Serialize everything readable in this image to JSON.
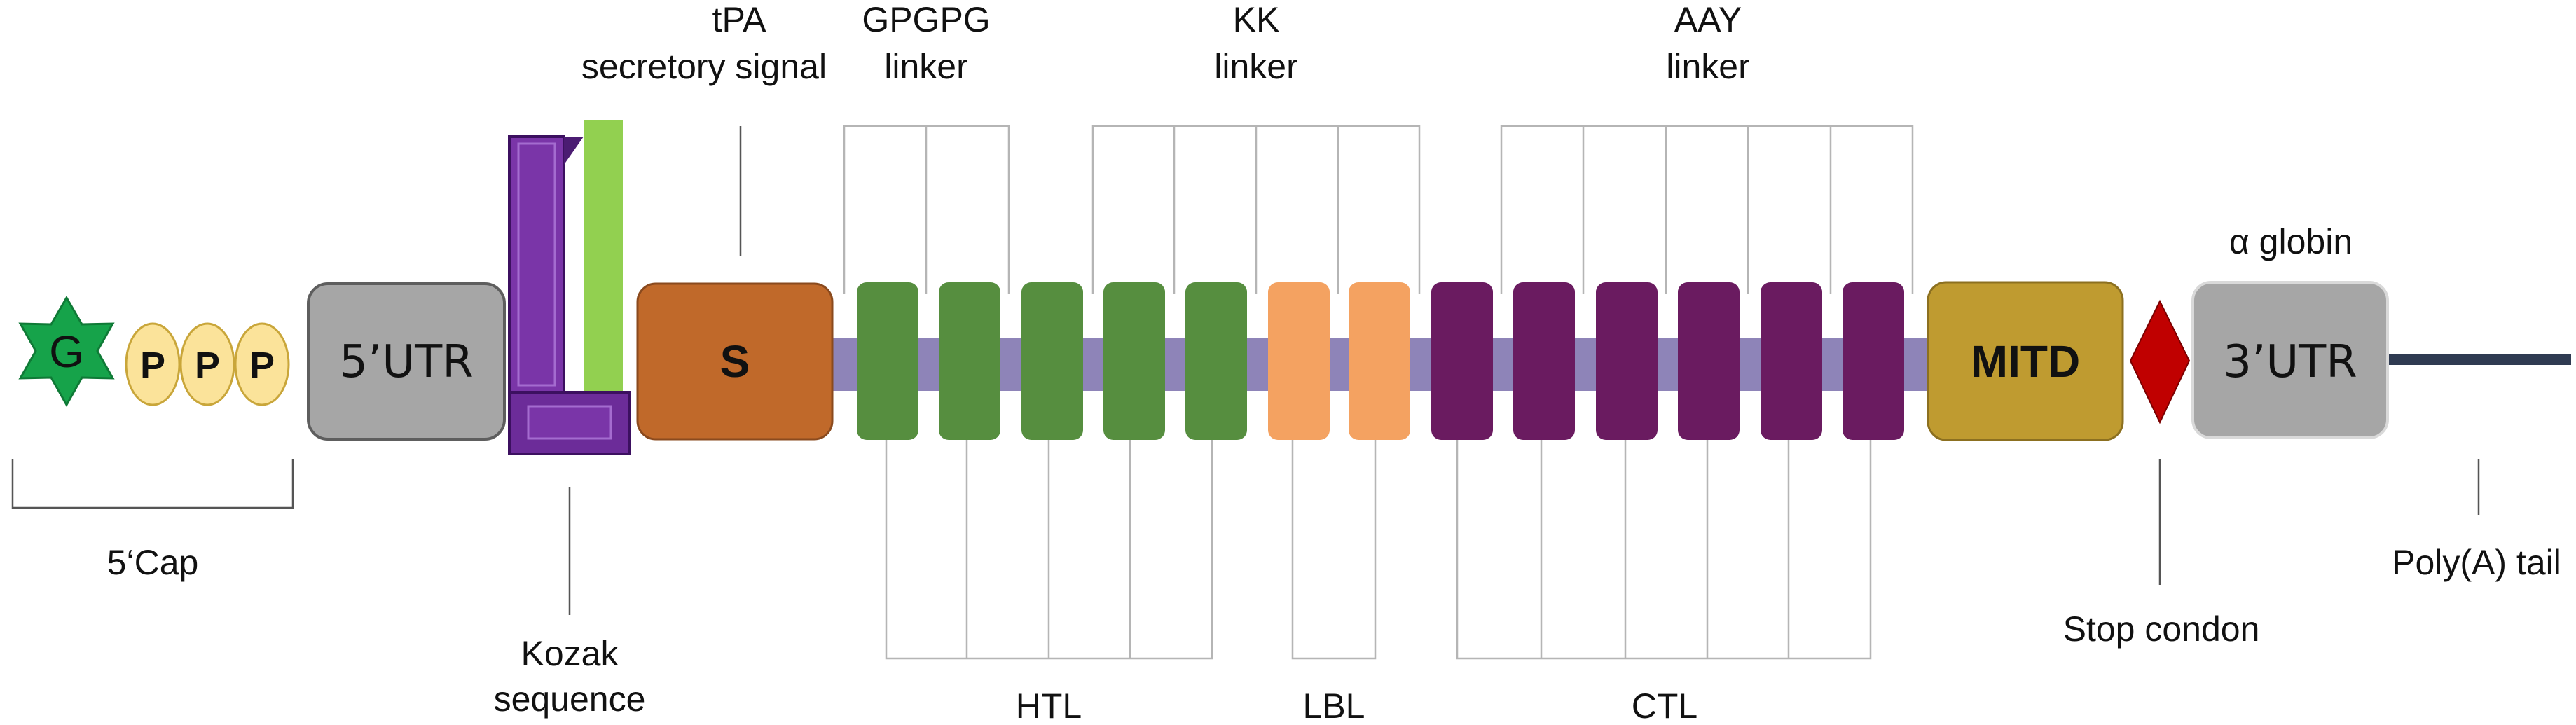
{
  "cap": {
    "g_label": "G",
    "p_labels": [
      "P",
      "P",
      "P"
    ],
    "bracket_label": "5‘Cap"
  },
  "utr5": {
    "label": "5’UTR"
  },
  "kozak": {
    "label_line1": "Kozak",
    "label_line2": "sequence"
  },
  "tpa": {
    "label_line1": "tPA",
    "label_line2": "secretory signal"
  },
  "signal": {
    "label": "S"
  },
  "linkers": {
    "gpgpg": {
      "line1": "GPGPG",
      "line2": "linker"
    },
    "kk": {
      "line1": "KK",
      "line2": "linker"
    },
    "aay": {
      "line1": "AAY",
      "line2": "linker"
    }
  },
  "epitope_groups": {
    "htl": {
      "label": "HTL",
      "count": 5
    },
    "lbl": {
      "label": "LBL",
      "count": 2
    },
    "ctl": {
      "label": "CTL",
      "count": 6
    }
  },
  "mitd": {
    "label": "MITD"
  },
  "stop": {
    "label": "Stop condon"
  },
  "utr3": {
    "label": "3’UTR",
    "top_label": "α globin"
  },
  "polya": {
    "label": "Poly(A) tail"
  },
  "colors": {
    "cap_g": "#16A34A",
    "cap_p": "#FBE39A",
    "utr_box": "#A6A6A6",
    "kozak_purple": "#7A35A8",
    "kozak_green": "#92D050",
    "signal_orange": "#C0692A",
    "backbone": "#8E84B8",
    "htl_green": "#568E3F",
    "lbl_orange": "#F4A261",
    "ctl_purple": "#6A1B60",
    "mitd_gold": "#BF9B30",
    "stop_red": "#C00000",
    "polya_tail": "#2F3B52"
  }
}
